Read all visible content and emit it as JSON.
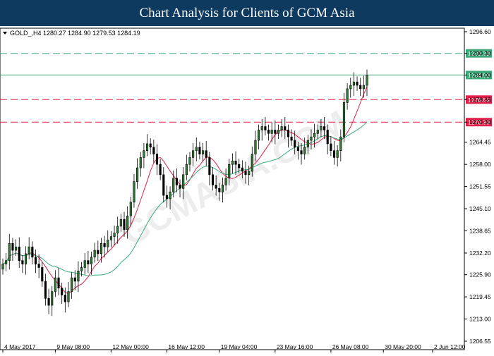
{
  "banner": {
    "title": "Chart Analysis for Clients of GCM Asia"
  },
  "chart_data": {
    "type": "candlestick",
    "symbol_header": "GOLD_,H4  1280.27 1284.90 1279.53 1284.19",
    "ylim": [
      1206.55,
      1296.0
    ],
    "y_ticks": [
      "1296.60",
      "1290.30",
      "1284.00",
      "1276.85",
      "1270.30",
      "1264.45",
      "1258.00",
      "1251.55",
      "1245.10",
      "1238.65",
      "1232.20",
      "1225.90",
      "1219.45",
      "1213.00",
      "1206.55"
    ],
    "y_tick_values": [
      1296.6,
      1290.3,
      1284.0,
      1276.85,
      1270.3,
      1264.45,
      1258.0,
      1251.55,
      1245.1,
      1238.65,
      1232.2,
      1225.9,
      1219.45,
      1213.0,
      1206.55
    ],
    "x_labels": [
      "4 May 2017",
      "9 May 08:00",
      "12 May 00:00",
      "16 May 12:00",
      "19 May 04:00",
      "23 May 16:00",
      "26 May 08:00",
      "30 May 20:00",
      "2 Jun 12:00"
    ],
    "x_label_index": [
      0,
      16,
      33,
      50,
      66,
      83,
      100,
      116,
      131
    ],
    "levels": [
      {
        "label": "1290.30",
        "value": 1290.3,
        "color": "#3daa7a",
        "style": "dashed"
      },
      {
        "label": "1284.00",
        "value": 1284.0,
        "color": "#3daa7a",
        "style": "solid"
      },
      {
        "label": "1276.85",
        "value": 1276.85,
        "color": "#e0204a",
        "style": "dashed"
      },
      {
        "label": "1270.30",
        "value": 1270.3,
        "color": "#e0204a",
        "style": "dashed"
      }
    ],
    "closes": [
      1229,
      1230,
      1235,
      1233,
      1234,
      1230,
      1229,
      1232,
      1234,
      1231,
      1229,
      1228,
      1224,
      1219,
      1217,
      1221,
      1225,
      1222,
      1220,
      1218,
      1221,
      1225,
      1224,
      1227,
      1228,
      1230,
      1229,
      1231,
      1233,
      1232,
      1235,
      1234,
      1236,
      1237,
      1238,
      1240,
      1242,
      1239,
      1243,
      1247,
      1253,
      1257,
      1260,
      1262,
      1264,
      1263,
      1261,
      1258,
      1255,
      1249,
      1248,
      1250,
      1254,
      1252,
      1251,
      1255,
      1258,
      1260,
      1262,
      1263,
      1261,
      1262,
      1260,
      1255,
      1252,
      1251,
      1250,
      1252,
      1254,
      1258,
      1259,
      1258,
      1257,
      1256,
      1255,
      1256,
      1261,
      1265,
      1268,
      1269,
      1268,
      1267,
      1268,
      1267,
      1268,
      1269,
      1268,
      1266,
      1265,
      1263,
      1262,
      1261,
      1263,
      1265,
      1266,
      1267,
      1268,
      1269,
      1268,
      1264,
      1262,
      1260,
      1262,
      1266,
      1276,
      1280,
      1281,
      1282,
      1281,
      1280,
      1281,
      1284
    ],
    "sma_fast_color": "#e0204a",
    "sma_slow_color": "#3daa7a",
    "watermark": "GCMASIA.COM"
  }
}
